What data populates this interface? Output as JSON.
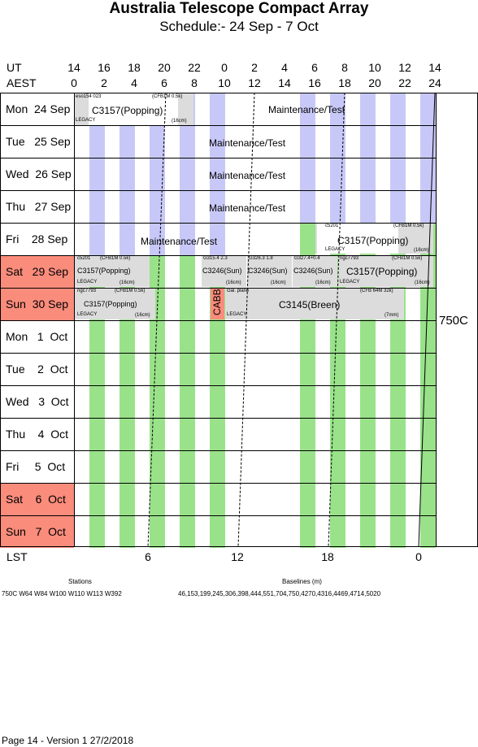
{
  "title": "Australia Telescope Compact Array",
  "subtitle": "Schedule:- 24 Sep - 7  Oct",
  "header": {
    "ut_label": "UT",
    "aest_label": "AEST",
    "ut_ticks": [
      "14",
      "16",
      "18",
      "20",
      "22",
      "0",
      "2",
      "4",
      "6",
      "8",
      "10",
      "12",
      "14"
    ],
    "aest_ticks": [
      "0",
      "2",
      "4",
      "6",
      "8",
      "10",
      "12",
      "14",
      "16",
      "18",
      "20",
      "22",
      "24"
    ]
  },
  "days": [
    {
      "label": "Mon  24 Sep",
      "weekend": false
    },
    {
      "label": "Tue   25 Sep",
      "weekend": false
    },
    {
      "label": "Wed  26 Sep",
      "weekend": false
    },
    {
      "label": "Thu   27 Sep",
      "weekend": false
    },
    {
      "label": "Fri    28 Sep",
      "weekend": false
    },
    {
      "label": "Sat   29 Sep",
      "weekend": true
    },
    {
      "label": "Sun  30 Sep",
      "weekend": true
    },
    {
      "label": "Mon   1  Oct",
      "weekend": false
    },
    {
      "label": "Tue    2  Oct",
      "weekend": false
    },
    {
      "label": "Wed   3  Oct",
      "weekend": false
    },
    {
      "label": "Thu    4  Oct",
      "weekend": false
    },
    {
      "label": "Fri     5  Oct",
      "weekend": false
    },
    {
      "label": "Sat    6  Oct",
      "weekend": true
    },
    {
      "label": "Sun   7  Oct",
      "weekend": true
    }
  ],
  "array_config": "750C",
  "blocks": {
    "r0_a_id": "eso154 023",
    "r0_a_cfg": "(CFB1M 0.5k)",
    "r0_a_name": "C3157(Popping)",
    "r0_a_legacy": "LEGACY",
    "r0_a_band": "(16cm)",
    "r0_b_name": "Maintenance/Test",
    "r1_name": "Maintenance/Test",
    "r2_name": "Maintenance/Test",
    "r3_name": "Maintenance/Test",
    "r4_a_name": "Maintenance/Test",
    "r4_b_id": "c5201",
    "r4_b_cfg": "(CFB1M 0.5k)",
    "r4_b_name": "C3157(Popping)",
    "r4_b_legacy": "LEGACY",
    "r4_b_band": "(16cm)",
    "r5_a_id": "c5201",
    "r5_a_cfg": "(CFB1M 0.5k)",
    "r5_a_name": "C3157(Popping)",
    "r5_a_legacy": "LEGACY",
    "r5_a_band": "(16cm)",
    "r5_b_id": "G315.4 2.3",
    "r5_b_name": "C3246(Sun)",
    "r5_b_band": "(16cm)",
    "r5_c_id": "G326.3 1.8",
    "r5_c_name": "C3246(Sun)",
    "r5_c_band": "(16cm)",
    "r5_d_id": "G327.4+0.4",
    "r5_d_name": "C3246(Sun)",
    "r5_d_band": "(16cm)",
    "r5_e_id": "ngc7793",
    "r5_e_cfg": "(CFB1M 0.5k)",
    "r5_e_name": "C3157(Popping)",
    "r5_e_legacy": "LEGACY",
    "r5_e_band": "(16cm)",
    "r6_a_id": "ngc7793",
    "r6_a_cfg": "(CFB1M 0.5k)",
    "r6_a_name": "C3157(Popping)",
    "r6_a_legacy": "LEGACY",
    "r6_a_band": "(16cm)",
    "r6_b_name": "CABB",
    "r6_c_id": "Gal. plane",
    "r6_c_cfg": "(CFB 64M 32k)",
    "r6_c_name": "C3145(Breen)",
    "r6_c_legacy": "LEGACY",
    "r6_c_band": "(7mm)"
  },
  "lst": {
    "label": "LST",
    "ticks": [
      "6",
      "12",
      "18",
      "0"
    ]
  },
  "footer": {
    "stations_title": "Stations",
    "stations_value": "750C   W64 W84 W100 W110 W113 W392",
    "baselines_title": "Baselines (m)",
    "baselines_value": "46,153,199,245,306,398,444,551,704,750,4270,4316,4469,4714,5020",
    "page_info": "Page 14 - Version 1  27/2/2018"
  },
  "colors": {
    "weekend": "#fa8c7c",
    "night_stripe_green": "#99e28a",
    "night_stripe_blue": "#c8c8f8",
    "block_grey": "#dcdcdc"
  }
}
